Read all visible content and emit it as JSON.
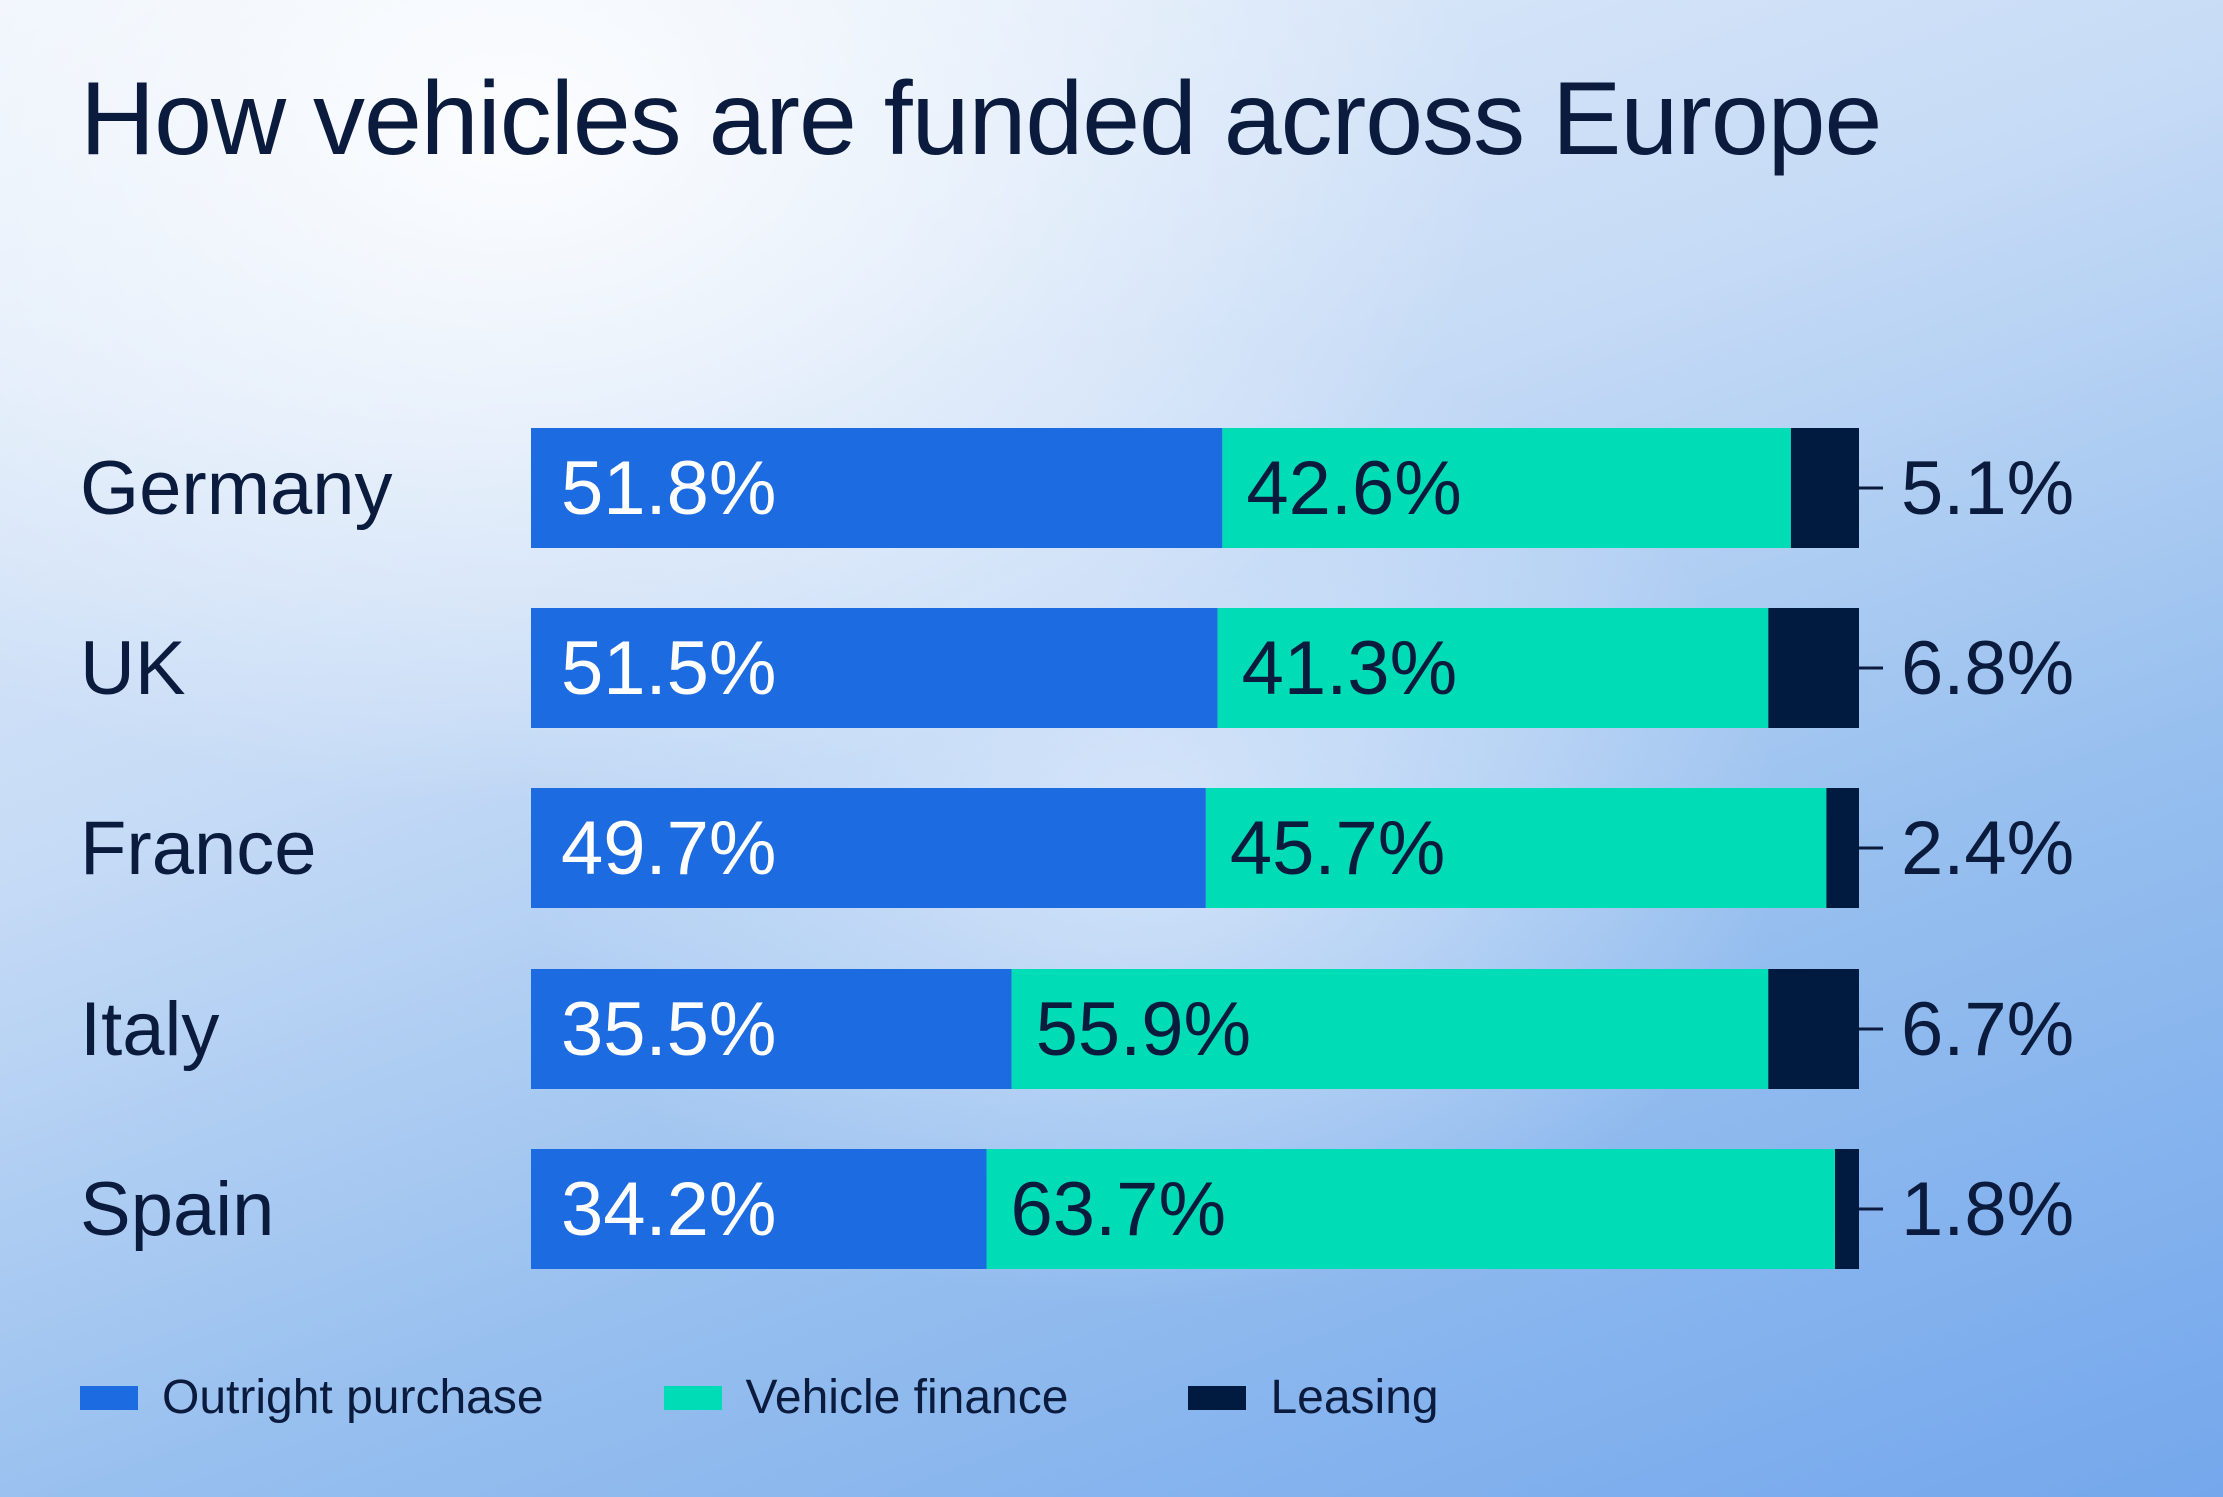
{
  "title": "How vehicles are funded across Europe",
  "colors": {
    "outright": "#1d6be0",
    "finance": "#00dcb5",
    "leasing": "#001a40",
    "text_dark": "#0b1b3d",
    "text_light": "#ffffff"
  },
  "legend": [
    {
      "label": "Outright purchase",
      "color": "#1d6be0"
    },
    {
      "label": "Vehicle finance",
      "color": "#00dcb5"
    },
    {
      "label": "Leasing",
      "color": "#001a40"
    }
  ],
  "chart_data": {
    "type": "bar",
    "orientation": "horizontal",
    "stacked": true,
    "title": "How vehicles are funded across Europe",
    "categories": [
      "Germany",
      "UK",
      "France",
      "Italy",
      "Spain"
    ],
    "series": [
      {
        "name": "Outright purchase",
        "values": [
          51.8,
          51.5,
          49.7,
          35.5,
          34.2
        ],
        "labels": [
          "51.8%",
          "51.5%",
          "49.7%",
          "35.5%",
          "34.2%"
        ]
      },
      {
        "name": "Vehicle finance",
        "values": [
          42.6,
          41.3,
          45.7,
          55.9,
          63.7
        ],
        "labels": [
          "42.6%",
          "41.3%",
          "45.7%",
          "55.9%",
          "63.7%"
        ]
      },
      {
        "name": "Leasing",
        "values": [
          5.1,
          6.8,
          2.4,
          6.7,
          1.8
        ],
        "labels": [
          "5.1%",
          "6.8%",
          "2.4%",
          "6.7%",
          "1.8%"
        ]
      }
    ],
    "legend_position": "bottom-left",
    "grid": false
  }
}
